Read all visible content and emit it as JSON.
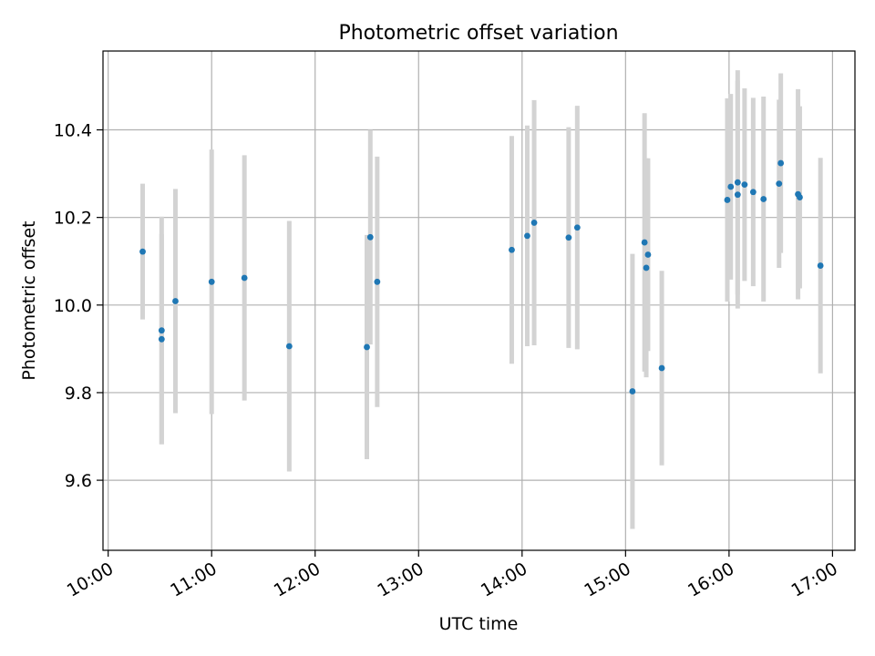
{
  "chart_data": {
    "type": "scatter",
    "title": "Photometric offset variation",
    "xlabel": "UTC time",
    "ylabel": "Photometric offset",
    "xlim": [
      "09:57",
      "17:13"
    ],
    "ylim": [
      9.44,
      10.58
    ],
    "x_ticks": [
      "10:00",
      "11:00",
      "12:00",
      "13:00",
      "14:00",
      "15:00",
      "16:00",
      "17:00"
    ],
    "y_ticks": [
      "9.6",
      "9.8",
      "10.0",
      "10.2",
      "10.4"
    ],
    "grid": true,
    "colors": {
      "point": "#1f77b4",
      "errorbar": "#d3d3d3",
      "grid": "#b0b0b0"
    },
    "points": [
      {
        "x": "10:20",
        "y": 10.122,
        "err": 0.155
      },
      {
        "x": "10:31",
        "y": 9.942,
        "err": 0.26
      },
      {
        "x": "10:31",
        "y": 9.922,
        "err": 0.24
      },
      {
        "x": "10:39",
        "y": 10.009,
        "err": 0.256
      },
      {
        "x": "11:00",
        "y": 10.053,
        "err": 0.302
      },
      {
        "x": "11:19",
        "y": 10.062,
        "err": 0.28
      },
      {
        "x": "11:45",
        "y": 9.906,
        "err": 0.286
      },
      {
        "x": "12:30",
        "y": 9.904,
        "err": 0.256
      },
      {
        "x": "12:32",
        "y": 10.155,
        "err": 0.245
      },
      {
        "x": "12:36",
        "y": 10.053,
        "err": 0.286
      },
      {
        "x": "13:54",
        "y": 10.126,
        "err": 0.26
      },
      {
        "x": "14:03",
        "y": 10.158,
        "err": 0.252
      },
      {
        "x": "14:07",
        "y": 10.188,
        "err": 0.28
      },
      {
        "x": "14:27",
        "y": 10.154,
        "err": 0.252
      },
      {
        "x": "14:32",
        "y": 10.177,
        "err": 0.278
      },
      {
        "x": "15:04",
        "y": 9.803,
        "err": 0.314
      },
      {
        "x": "15:11",
        "y": 10.143,
        "err": 0.295
      },
      {
        "x": "15:12",
        "y": 10.085,
        "err": 0.25
      },
      {
        "x": "15:13",
        "y": 10.115,
        "err": 0.22
      },
      {
        "x": "15:21",
        "y": 9.856,
        "err": 0.222
      },
      {
        "x": "15:59",
        "y": 10.24,
        "err": 0.232
      },
      {
        "x": "16:01",
        "y": 10.27,
        "err": 0.212
      },
      {
        "x": "16:05",
        "y": 10.28,
        "err": 0.256
      },
      {
        "x": "16:05",
        "y": 10.252,
        "err": 0.26
      },
      {
        "x": "16:09",
        "y": 10.275,
        "err": 0.22
      },
      {
        "x": "16:14",
        "y": 10.258,
        "err": 0.215
      },
      {
        "x": "16:20",
        "y": 10.242,
        "err": 0.234
      },
      {
        "x": "16:29",
        "y": 10.277,
        "err": 0.192
      },
      {
        "x": "16:30",
        "y": 10.324,
        "err": 0.205
      },
      {
        "x": "16:40",
        "y": 10.253,
        "err": 0.24
      },
      {
        "x": "16:41",
        "y": 10.246,
        "err": 0.208
      },
      {
        "x": "16:53",
        "y": 10.09,
        "err": 0.246
      }
    ]
  }
}
